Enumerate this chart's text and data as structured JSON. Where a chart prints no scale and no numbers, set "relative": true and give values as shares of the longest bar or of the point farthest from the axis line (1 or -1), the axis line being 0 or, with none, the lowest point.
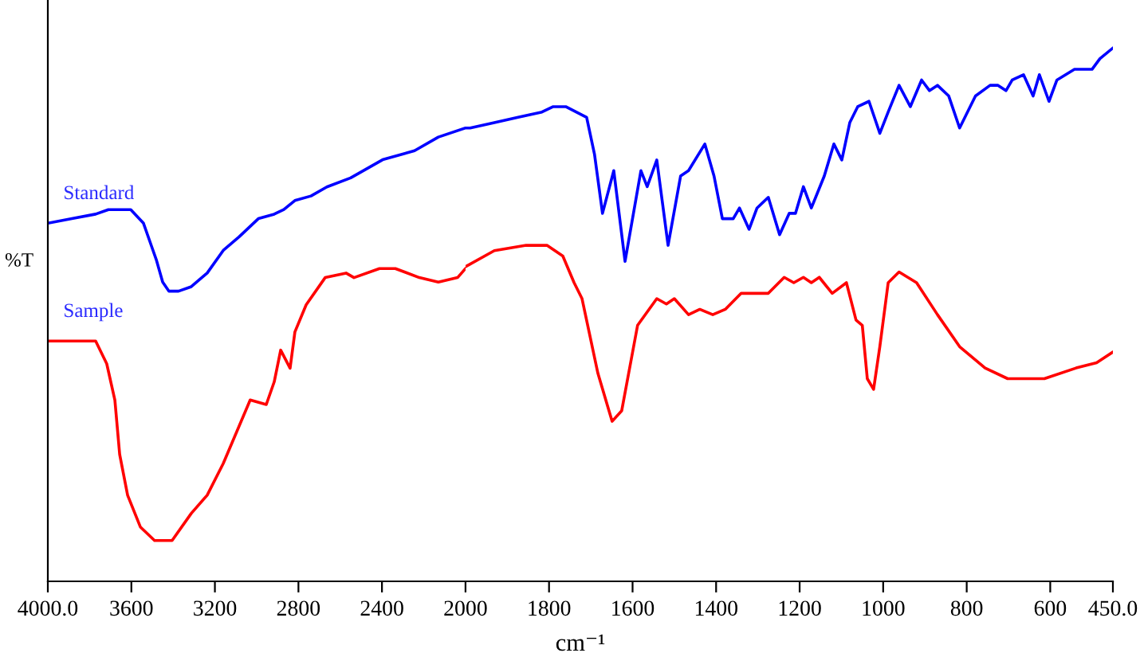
{
  "chart_data": [
    {
      "type": "line",
      "relative": true,
      "ylabel": "%T",
      "xlim": [
        4000,
        2000
      ],
      "xticks": [
        {
          "value": 4000,
          "label": "4000.0"
        },
        3600,
        3200,
        2800,
        2400,
        2000
      ],
      "grid": false,
      "legend": false,
      "marker": "none",
      "line_style": "solid",
      "series": [
        {
          "name": "Standard",
          "color": "#0000ff",
          "x": [
            4000,
            3885,
            3771,
            3710,
            3656,
            3603,
            3542,
            3504,
            3481,
            3450,
            3420,
            3374,
            3313,
            3237,
            3160,
            3084,
            2992,
            2916,
            2870,
            2817,
            2740,
            2664,
            2550,
            2397,
            2244,
            2130,
            2000
          ],
          "values": [
            0.79,
            0.8,
            0.81,
            0.82,
            0.82,
            0.82,
            0.79,
            0.74,
            0.71,
            0.66,
            0.64,
            0.64,
            0.65,
            0.68,
            0.73,
            0.76,
            0.8,
            0.81,
            0.82,
            0.84,
            0.85,
            0.87,
            0.89,
            0.93,
            0.95,
            0.98,
            1.0
          ]
        },
        {
          "name": "Sample",
          "color": "#ff0000",
          "x": [
            4000,
            3947,
            3847,
            3771,
            3718,
            3679,
            3656,
            3618,
            3557,
            3489,
            3443,
            3405,
            3313,
            3237,
            3160,
            3031,
            2954,
            2916,
            2885,
            2840,
            2817,
            2763,
            2672,
            2572,
            2534,
            2412,
            2336,
            2221,
            2130,
            2038,
            2000
          ],
          "values": [
            0.53,
            0.53,
            0.53,
            0.53,
            0.48,
            0.4,
            0.28,
            0.19,
            0.12,
            0.09,
            0.09,
            0.09,
            0.15,
            0.19,
            0.26,
            0.4,
            0.39,
            0.44,
            0.51,
            0.47,
            0.55,
            0.61,
            0.67,
            0.68,
            0.67,
            0.69,
            0.69,
            0.67,
            0.66,
            0.67,
            0.69
          ]
        }
      ]
    },
    {
      "type": "line",
      "relative": true,
      "xlabel": "cm⁻¹",
      "xlim": [
        2000,
        450
      ],
      "xticks": [
        1800,
        1600,
        1400,
        1200,
        1000,
        800,
        600,
        {
          "value": 450,
          "label": "450.0"
        }
      ],
      "grid": false,
      "legend": false,
      "marker": "none",
      "line_style": "solid",
      "series": [
        {
          "color": "#0000ff",
          "x": [
            2000,
            1989,
            1931,
            1874,
            1817,
            1790,
            1760,
            1710,
            1691,
            1672,
            1645,
            1618,
            1580,
            1565,
            1542,
            1515,
            1485,
            1466,
            1427,
            1405,
            1385,
            1359,
            1344,
            1321,
            1302,
            1275,
            1248,
            1225,
            1210,
            1191,
            1172,
            1141,
            1118,
            1099,
            1080,
            1061,
            1034,
            1008,
            988,
            962,
            935,
            908,
            889,
            870,
            843,
            817,
            779,
            744,
            725,
            706,
            691,
            664,
            641,
            626,
            603,
            584,
            542,
            500,
            481,
            450
          ],
          "values": [
            0.85,
            0.85,
            0.86,
            0.87,
            0.88,
            0.89,
            0.89,
            0.87,
            0.8,
            0.69,
            0.77,
            0.6,
            0.77,
            0.74,
            0.79,
            0.63,
            0.76,
            0.77,
            0.82,
            0.76,
            0.68,
            0.68,
            0.7,
            0.66,
            0.7,
            0.72,
            0.65,
            0.69,
            0.69,
            0.74,
            0.7,
            0.76,
            0.82,
            0.79,
            0.86,
            0.89,
            0.9,
            0.84,
            0.88,
            0.93,
            0.89,
            0.94,
            0.92,
            0.93,
            0.91,
            0.85,
            0.91,
            0.93,
            0.93,
            0.92,
            0.94,
            0.95,
            0.91,
            0.95,
            0.9,
            0.94,
            0.96,
            0.96,
            0.98,
            1.0
          ]
        },
        {
          "color": "#ff0000",
          "x": [
            2000,
            1931,
            1855,
            1805,
            1767,
            1740,
            1721,
            1683,
            1649,
            1626,
            1588,
            1542,
            1519,
            1500,
            1466,
            1439,
            1408,
            1378,
            1340,
            1275,
            1237,
            1214,
            1191,
            1172,
            1153,
            1122,
            1088,
            1065,
            1050,
            1038,
            1023,
            1008,
            988,
            962,
            920,
            870,
            817,
            756,
            702,
            614,
            538,
            489,
            450
          ],
          "values": [
            0.59,
            0.62,
            0.63,
            0.63,
            0.61,
            0.56,
            0.53,
            0.39,
            0.3,
            0.32,
            0.48,
            0.53,
            0.52,
            0.53,
            0.5,
            0.51,
            0.5,
            0.51,
            0.54,
            0.54,
            0.57,
            0.56,
            0.57,
            0.56,
            0.57,
            0.54,
            0.56,
            0.49,
            0.48,
            0.38,
            0.36,
            0.44,
            0.56,
            0.58,
            0.56,
            0.5,
            0.44,
            0.4,
            0.38,
            0.38,
            0.4,
            0.41,
            0.43
          ]
        }
      ]
    }
  ]
}
